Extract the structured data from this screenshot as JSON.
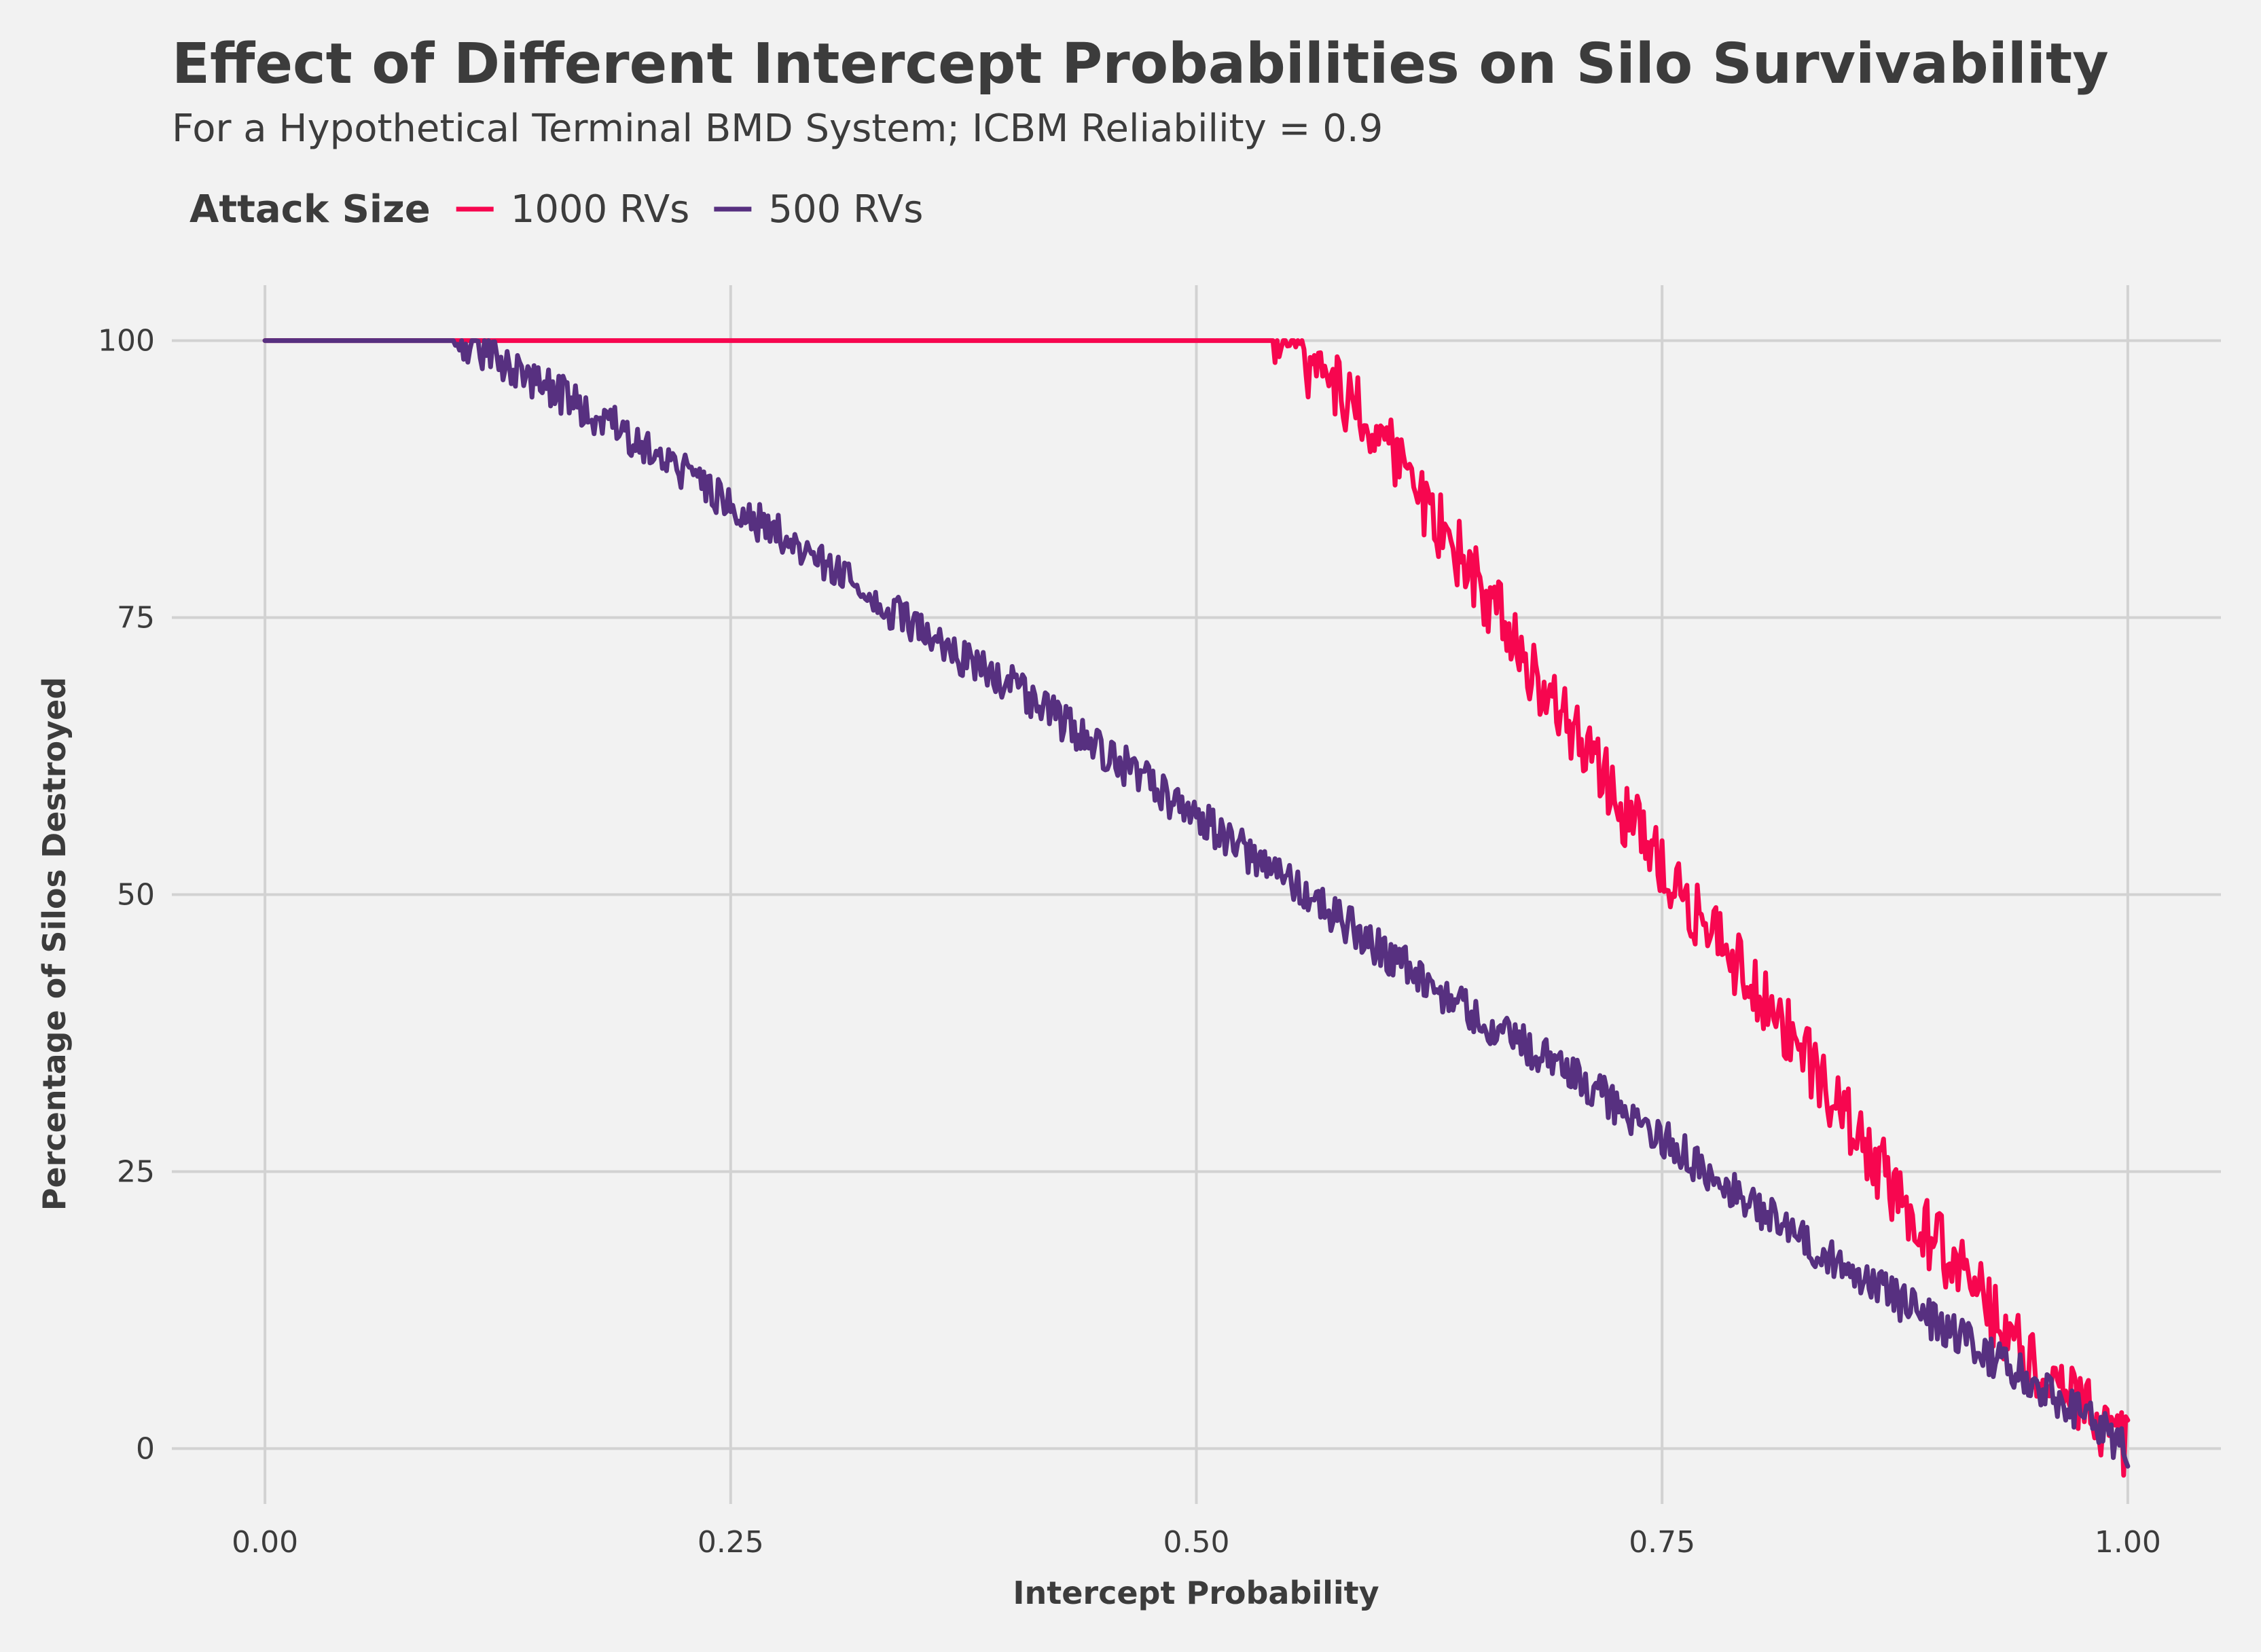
{
  "chart_data": {
    "type": "line",
    "title": "Effect of Different Intercept Probabilities on Silo Survivability",
    "subtitle": "For a Hypothetical Terminal BMD System; ICBM Reliability = 0.9",
    "xlabel": "Intercept Probability",
    "ylabel": "Percentage of Silos Destroyed",
    "xlim": [
      -0.05,
      1.05
    ],
    "ylim": [
      -5,
      105
    ],
    "x_ticks": [
      0,
      0.25,
      0.5,
      0.75,
      1
    ],
    "x_tick_labels": [
      "0.00",
      "0.25",
      "0.50",
      "0.75",
      "1.00"
    ],
    "y_ticks": [
      0,
      25,
      50,
      75,
      100
    ],
    "y_tick_labels": [
      "0",
      "25",
      "50",
      "75",
      "100"
    ],
    "grid": true,
    "legend": {
      "title": "Attack Size",
      "position": "top-left"
    },
    "series": [
      {
        "name": "1000 RVs",
        "color": "#f7064f",
        "x": [
          0,
          0.05,
          0.1,
          0.15,
          0.2,
          0.25,
          0.3,
          0.35,
          0.4,
          0.45,
          0.5,
          0.54,
          0.56,
          0.58,
          0.6,
          0.62,
          0.64,
          0.66,
          0.68,
          0.7,
          0.72,
          0.74,
          0.76,
          0.78,
          0.8,
          0.82,
          0.84,
          0.86,
          0.88,
          0.9,
          0.92,
          0.94,
          0.96,
          0.98,
          1.0
        ],
        "values": [
          100,
          100,
          100,
          100,
          100,
          100,
          100,
          100,
          100,
          100,
          100,
          100,
          98,
          95,
          91,
          86,
          81,
          76,
          70,
          65,
          60,
          55,
          50,
          46,
          41,
          37,
          32,
          27,
          22,
          18,
          14,
          9,
          6,
          3,
          0
        ]
      },
      {
        "name": "500 RVs",
        "color": "#573080",
        "x": [
          0,
          0.05,
          0.1,
          0.12,
          0.15,
          0.2,
          0.25,
          0.3,
          0.35,
          0.4,
          0.45,
          0.5,
          0.55,
          0.6,
          0.65,
          0.7,
          0.75,
          0.8,
          0.85,
          0.9,
          0.95,
          1.0
        ],
        "values": [
          100,
          100,
          100,
          99,
          96,
          91,
          85,
          80,
          74,
          69,
          63,
          57,
          51,
          45,
          39,
          34,
          28,
          22,
          16,
          11,
          6,
          0
        ]
      }
    ]
  }
}
